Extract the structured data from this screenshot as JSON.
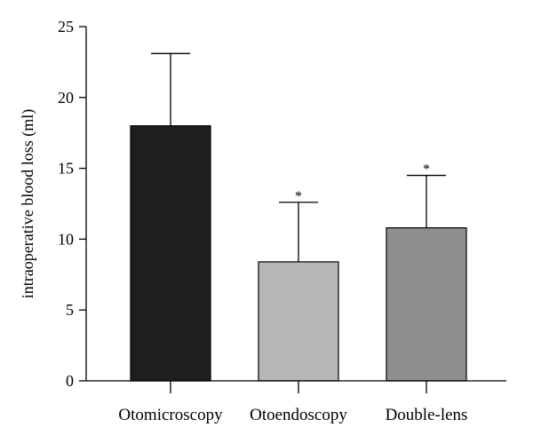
{
  "chart_data": {
    "type": "bar",
    "ylabel": "intraoperative blood loss (ml)",
    "xlabel": "",
    "ylim": [
      0,
      25
    ],
    "yticks": [
      0,
      5,
      10,
      15,
      20,
      25
    ],
    "categories": [
      "Otomicroscopy",
      "Otoendoscopy",
      "Double-lens"
    ],
    "values": [
      18.0,
      8.4,
      10.8
    ],
    "error_upper": [
      5.1,
      4.2,
      3.7
    ],
    "significance_markers": [
      "",
      "*",
      "*"
    ],
    "bar_colors": [
      "#1f1f1f",
      "#b7b7b7",
      "#8f8f8f"
    ],
    "grid": false,
    "legend": "none"
  }
}
